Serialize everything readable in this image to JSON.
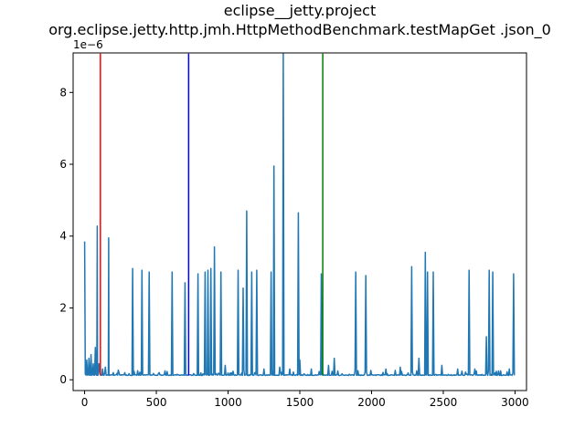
{
  "chart_data": {
    "type": "line",
    "title_line1": "eclipse__jetty.project",
    "title_line2": "org.eclipse.jetty.http.jmh.HttpMethodBenchmark.testMapGet .json_0",
    "xlabel": "",
    "ylabel": "",
    "y_offset_label": "1e−6",
    "xlim": [
      -80,
      3080
    ],
    "ylim": [
      -0.3,
      9.1
    ],
    "x_ticks": [
      0,
      500,
      1000,
      1500,
      2000,
      2500,
      3000
    ],
    "y_ticks": [
      0,
      2,
      4,
      6,
      8
    ],
    "grid": false,
    "vertical_lines": [
      {
        "x": 110,
        "color": "#ff0000"
      },
      {
        "x": 725,
        "color": "#0000ff"
      },
      {
        "x": 1660,
        "color": "#008000"
      }
    ],
    "series_color": "#1f77b4",
    "baseline": 0.12,
    "spikes": [
      [
        0,
        3.85
      ],
      [
        15,
        0.55
      ],
      [
        30,
        0.6
      ],
      [
        45,
        0.7
      ],
      [
        60,
        0.45
      ],
      [
        75,
        0.9
      ],
      [
        88,
        4.28
      ],
      [
        100,
        0.45
      ],
      [
        125,
        0.3
      ],
      [
        145,
        0.35
      ],
      [
        168,
        3.95
      ],
      [
        200,
        0.2
      ],
      [
        240,
        0.2
      ],
      [
        280,
        0.2
      ],
      [
        335,
        3.1
      ],
      [
        400,
        3.05
      ],
      [
        450,
        3.0
      ],
      [
        520,
        0.2
      ],
      [
        560,
        0.25
      ],
      [
        610,
        3.0
      ],
      [
        700,
        2.7
      ],
      [
        790,
        2.95
      ],
      [
        840,
        3.0
      ],
      [
        860,
        3.05
      ],
      [
        880,
        3.1
      ],
      [
        905,
        3.7
      ],
      [
        950,
        3.0
      ],
      [
        980,
        0.4
      ],
      [
        1070,
        3.05
      ],
      [
        1105,
        2.55
      ],
      [
        1130,
        4.7
      ],
      [
        1165,
        3.0
      ],
      [
        1200,
        3.05
      ],
      [
        1250,
        0.3
      ],
      [
        1300,
        3.0
      ],
      [
        1320,
        5.95
      ],
      [
        1360,
        0.35
      ],
      [
        1385,
        9.08
      ],
      [
        1430,
        0.3
      ],
      [
        1490,
        4.65
      ],
      [
        1500,
        0.55
      ],
      [
        1580,
        0.3
      ],
      [
        1650,
        2.95
      ],
      [
        1700,
        0.4
      ],
      [
        1740,
        0.6
      ],
      [
        1890,
        3.0
      ],
      [
        1960,
        2.9
      ],
      [
        2100,
        0.3
      ],
      [
        2200,
        0.35
      ],
      [
        2280,
        3.15
      ],
      [
        2330,
        0.6
      ],
      [
        2375,
        3.55
      ],
      [
        2390,
        3.0
      ],
      [
        2430,
        3.0
      ],
      [
        2490,
        0.4
      ],
      [
        2600,
        0.3
      ],
      [
        2680,
        3.05
      ],
      [
        2720,
        0.3
      ],
      [
        2800,
        1.2
      ],
      [
        2820,
        3.05
      ],
      [
        2845,
        3.0
      ],
      [
        2900,
        0.25
      ],
      [
        2960,
        0.3
      ],
      [
        2990,
        2.95
      ]
    ]
  }
}
